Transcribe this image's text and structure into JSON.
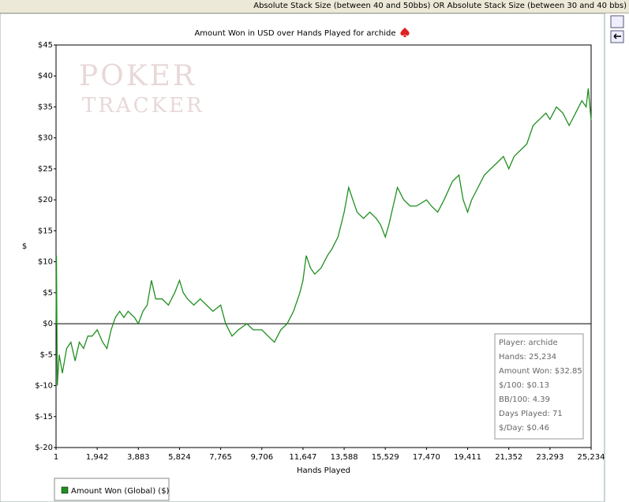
{
  "filter_text": "Absolute Stack Size (between 40 and 50bbs) OR Absolute Stack Size (between 30 and 40 bbs)",
  "chart_data": {
    "type": "line",
    "title": "Amount Won in USD over Hands Played for archide",
    "watermark": [
      "POKER",
      "TRACKER"
    ],
    "x_label": "Hands Played",
    "y_label": "$",
    "xlim": [
      1,
      25234
    ],
    "ylim": [
      -20,
      45
    ],
    "xticks": [
      1,
      {
        "value": 1942,
        "label": "1,942"
      },
      {
        "value": 3883,
        "label": "3,883"
      },
      {
        "value": 5824,
        "label": "5,824"
      },
      {
        "value": 7765,
        "label": "7,765"
      },
      {
        "value": 9706,
        "label": "9,706"
      },
      {
        "value": 11647,
        "label": "11,647"
      },
      {
        "value": 13588,
        "label": "13,588"
      },
      {
        "value": 15529,
        "label": "15,529"
      },
      {
        "value": 17470,
        "label": "17,470"
      },
      {
        "value": 19411,
        "label": "19,411"
      },
      {
        "value": 21352,
        "label": "21,352"
      },
      {
        "value": 23293,
        "label": "23,293"
      },
      {
        "value": 25234,
        "label": "25,234"
      }
    ],
    "yticks": [
      {
        "value": -20,
        "label": "$-20"
      },
      {
        "value": -15,
        "label": "$-15"
      },
      {
        "value": -10,
        "label": "$-10"
      },
      {
        "value": -5,
        "label": "$-5"
      },
      {
        "value": 0,
        "label": "$0"
      },
      {
        "value": 5,
        "label": "$5"
      },
      {
        "value": 10,
        "label": "$10"
      },
      {
        "value": 15,
        "label": "$15"
      },
      {
        "value": 20,
        "label": "$20"
      },
      {
        "value": 25,
        "label": "$25"
      },
      {
        "value": 30,
        "label": "$30"
      },
      {
        "value": 35,
        "label": "$35"
      },
      {
        "value": 40,
        "label": "$40"
      },
      {
        "value": 45,
        "label": "$45"
      }
    ],
    "zero_line": true,
    "x": [
      1,
      20,
      60,
      150,
      300,
      500,
      700,
      900,
      1100,
      1300,
      1500,
      1700,
      1942,
      2200,
      2400,
      2600,
      2800,
      3000,
      3200,
      3400,
      3700,
      3883,
      4100,
      4300,
      4500,
      4700,
      5000,
      5300,
      5600,
      5824,
      6000,
      6200,
      6500,
      6800,
      7100,
      7400,
      7765,
      8000,
      8300,
      8600,
      9000,
      9300,
      9706,
      10000,
      10300,
      10600,
      10900,
      11200,
      11500,
      11647,
      11800,
      12000,
      12200,
      12500,
      12800,
      13000,
      13300,
      13588,
      13800,
      14000,
      14200,
      14500,
      14800,
      15100,
      15300,
      15529,
      15700,
      15900,
      16100,
      16400,
      16700,
      17000,
      17470,
      17700,
      18000,
      18300,
      18700,
      19000,
      19200,
      19411,
      19600,
      19900,
      20200,
      20500,
      20800,
      21100,
      21352,
      21600,
      21900,
      22200,
      22500,
      22800,
      23100,
      23293,
      23600,
      23900,
      24200,
      24500,
      24800,
      25000,
      25100,
      25234
    ],
    "series": [
      {
        "name": "Amount Won (Global) ($)",
        "color": "#1f8f1f",
        "values": [
          0,
          11,
          -10,
          -5,
          -8,
          -4,
          -3,
          -6,
          -3,
          -4,
          -2,
          -2,
          -1,
          -3,
          -4,
          -1,
          1,
          2,
          1,
          2,
          1,
          0,
          2,
          3,
          7,
          4,
          4,
          3,
          5,
          7,
          5,
          4,
          3,
          4,
          3,
          2,
          3,
          0,
          -2,
          -1,
          0,
          -1,
          -1,
          -2,
          -3,
          -1,
          0,
          2,
          5,
          7,
          11,
          9,
          8,
          9,
          11,
          12,
          14,
          18,
          22,
          20,
          18,
          17,
          18,
          17,
          16,
          14,
          16,
          19,
          22,
          20,
          19,
          19,
          20,
          19,
          18,
          20,
          23,
          24,
          20,
          18,
          20,
          22,
          24,
          25,
          26,
          27,
          25,
          27,
          28,
          29,
          32,
          33,
          34,
          33,
          35,
          34,
          32,
          34,
          36,
          35,
          38,
          32.85
        ]
      }
    ],
    "stats_box": [
      "Player: archide",
      "Hands: 25,234",
      "Amount Won: $32.85",
      "$/100: $0.13",
      "BB/100: 4.39",
      "Days Played: 71",
      "$/Day: $0.46"
    ]
  }
}
